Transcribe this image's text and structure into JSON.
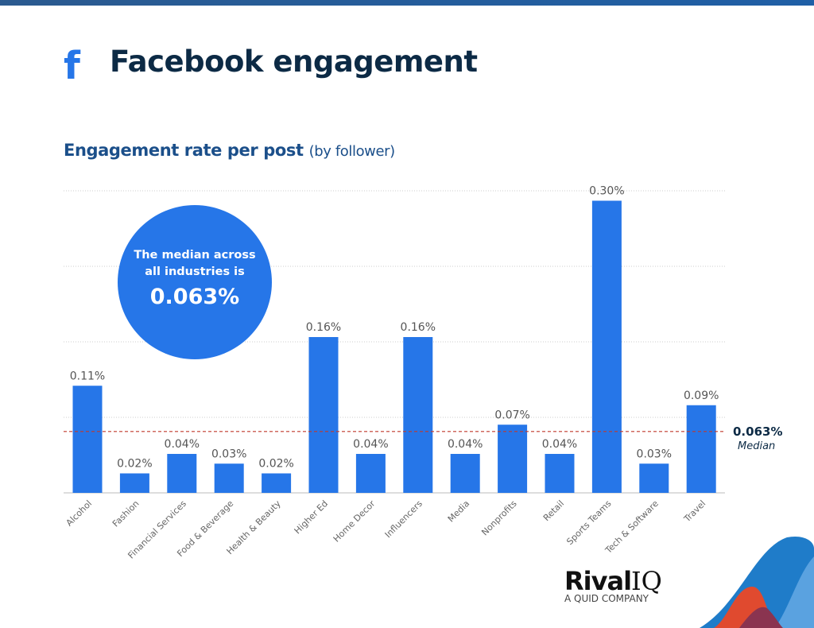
{
  "header": {
    "icon": "facebook-icon",
    "title": "Facebook engagement"
  },
  "subtitle": {
    "bold": "Engagement rate per post",
    "light": "(by follower)"
  },
  "callout": {
    "text1": "The median across",
    "text2": "all industries is",
    "value": "0.063%"
  },
  "median": {
    "value": "0.063%",
    "label": "Median"
  },
  "logo": {
    "name_bold": "Rival",
    "name_light": "IQ",
    "tagline": "A QUID COMPANY"
  },
  "colors": {
    "bar": "#2676e8",
    "median_line": "#c0392b",
    "title": "#0c2a45",
    "subtitle": "#1b4f8a"
  },
  "chart_data": {
    "type": "bar",
    "title": "Engagement rate per post (by follower)",
    "categories": [
      "Alcohol",
      "Fashion",
      "Financial Services",
      "Food & Beverage",
      "Health & Beauty",
      "Higher Ed",
      "Home Decor",
      "Influencers",
      "Media",
      "Nonprofits",
      "Retail",
      "Sports Teams",
      "Tech & Software",
      "Travel"
    ],
    "values": [
      0.11,
      0.02,
      0.04,
      0.03,
      0.02,
      0.16,
      0.04,
      0.16,
      0.04,
      0.07,
      0.04,
      0.3,
      0.03,
      0.09
    ],
    "labels": [
      "0.11%",
      "0.02%",
      "0.04%",
      "0.03%",
      "0.02%",
      "0.16%",
      "0.04%",
      "0.16%",
      "0.04%",
      "0.07%",
      "0.04%",
      "0.30%",
      "0.03%",
      "0.09%"
    ],
    "unit": "%",
    "median": 0.063,
    "ylim": [
      0,
      0.31
    ],
    "grid": true,
    "xlabel": "",
    "ylabel": ""
  }
}
